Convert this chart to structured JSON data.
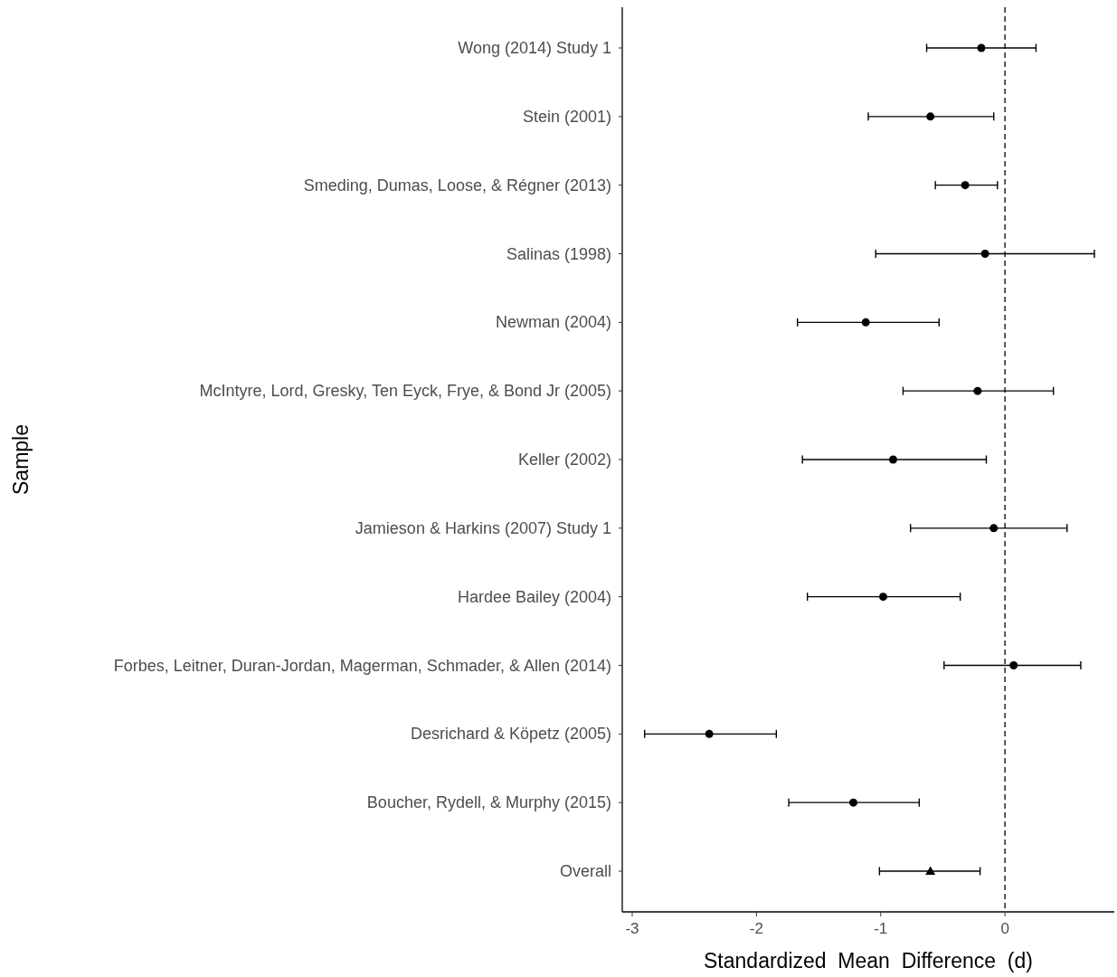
{
  "chart_data": {
    "type": "scatter",
    "orientation": "horizontal",
    "xlabel": "Standardized  Mean  Difference  (d)",
    "ylabel": "Sample",
    "categories": [
      "Wong (2014) Study 1",
      "Stein (2001)",
      "Smeding, Dumas,  Loose, & Régner (2013)",
      "Salinas (1998)",
      "Newman (2004)",
      "McIntyre, Lord, Gresky, Ten Eyck, Frye, & Bond Jr (2005)",
      "Keller (2002)",
      "Jamieson & Harkins (2007) Study 1",
      "Hardee Bailey (2004)",
      "Forbes, Leitner, Duran-Jordan, Magerman, Schmader, & Allen (2014)",
      "Desrichard & Köpetz (2005)",
      "Boucher, Rydell, & Murphy (2015)",
      "Overall"
    ],
    "series": [
      {
        "color": "#000000",
        "marker": "circle",
        "values": [
          -0.19,
          -0.6,
          -0.32,
          -0.16,
          -1.12,
          -0.22,
          -0.9,
          -0.09,
          -0.98,
          0.07,
          -2.38,
          -1.22,
          null
        ],
        "errors": [
          [
            -0.63,
            0.25
          ],
          [
            -1.1,
            -0.09
          ],
          [
            -0.56,
            -0.06
          ],
          [
            -1.04,
            0.72
          ],
          [
            -1.67,
            -0.53
          ],
          [
            -0.82,
            0.39
          ],
          [
            -1.63,
            -0.15
          ],
          [
            -0.76,
            0.5
          ],
          [
            -1.59,
            -0.36
          ],
          [
            -0.49,
            0.61
          ],
          [
            -2.9,
            -1.84
          ],
          [
            -1.74,
            -0.69
          ],
          null
        ]
      },
      {
        "color": "#000000",
        "marker": "triangle",
        "values": [
          null,
          null,
          null,
          null,
          null,
          null,
          null,
          null,
          null,
          null,
          null,
          null,
          -0.6
        ],
        "errors": [
          null,
          null,
          null,
          null,
          null,
          null,
          null,
          null,
          null,
          null,
          null,
          null,
          [
            -1.01,
            -0.2
          ]
        ]
      }
    ],
    "xlim": [
      -3.08,
      0.88
    ],
    "xticks": [
      -3,
      -2,
      -1,
      0
    ],
    "grid": false,
    "ref_lines": [
      {
        "axis": "x",
        "value": 0,
        "line_style": "dashed",
        "color": "#000000"
      }
    ]
  }
}
